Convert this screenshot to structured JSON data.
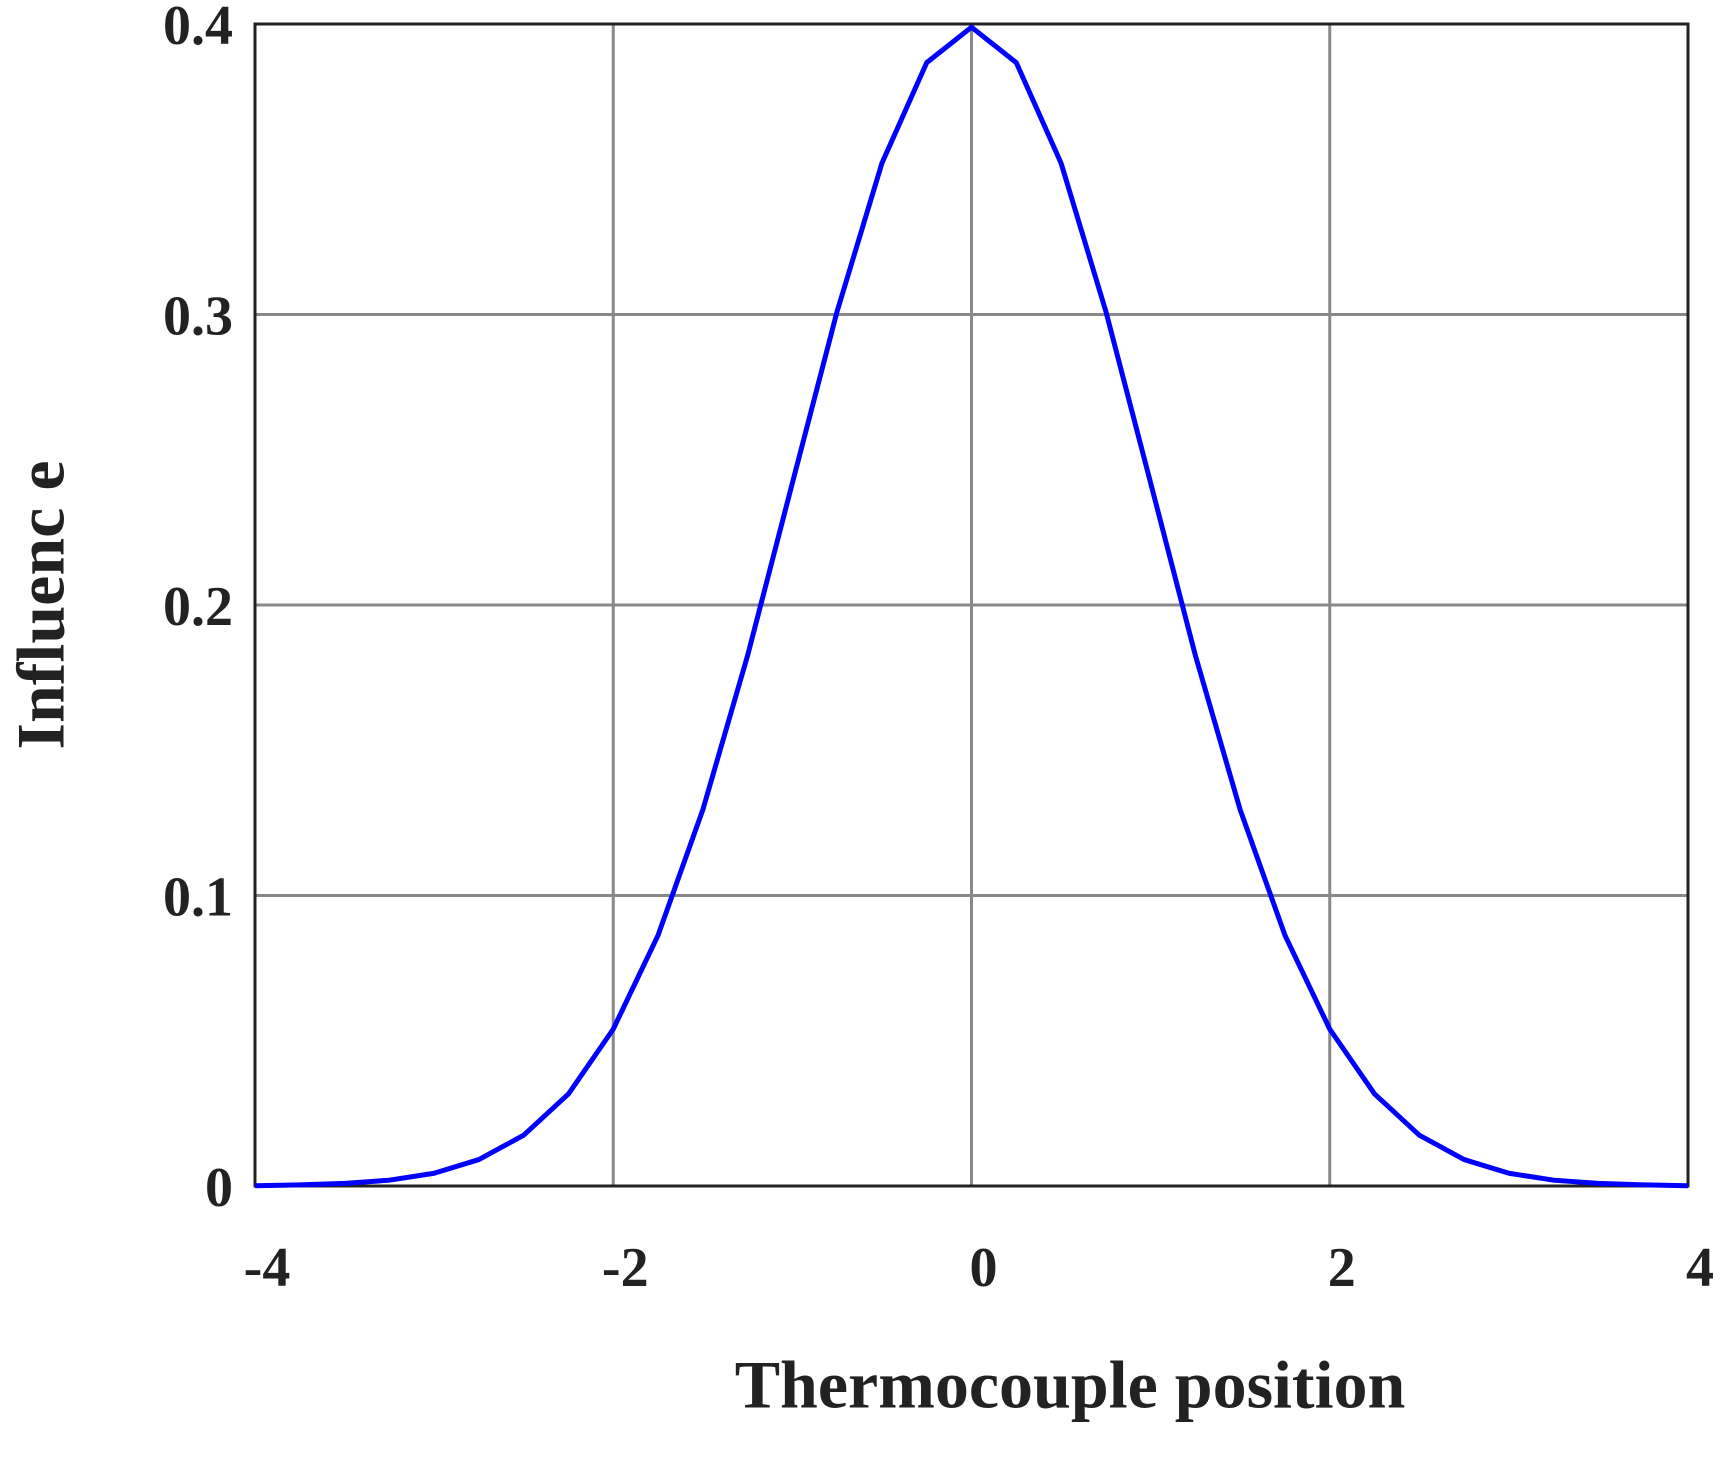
{
  "chart_data": {
    "type": "line",
    "x_label": "Thermocouple position",
    "y_label": "Influenc e",
    "x": [
      -4,
      -3.75,
      -3.5,
      -3.25,
      -3,
      -2.75,
      -2.5,
      -2.25,
      -2,
      -1.75,
      -1.5,
      -1.25,
      -1,
      -0.75,
      -0.5,
      -0.25,
      0,
      0.25,
      0.5,
      0.75,
      1,
      1.25,
      1.5,
      1.75,
      2,
      2.25,
      2.5,
      2.75,
      3,
      3.25,
      3.5,
      3.75,
      4
    ],
    "series": [
      {
        "color": "#0000ff",
        "values": [
          0.0001,
          0.0004,
          0.0009,
          0.002,
          0.0044,
          0.0091,
          0.0175,
          0.0317,
          0.054,
          0.0863,
          0.1295,
          0.1826,
          0.242,
          0.3011,
          0.3521,
          0.3867,
          0.3989,
          0.3867,
          0.3521,
          0.3011,
          0.242,
          0.1826,
          0.1295,
          0.0863,
          0.054,
          0.0317,
          0.0175,
          0.0091,
          0.0044,
          0.002,
          0.0009,
          0.0004,
          0.0001
        ]
      }
    ],
    "xlim": [
      -4,
      4
    ],
    "xticks": [
      -4,
      -2,
      0,
      2,
      4
    ],
    "ylim": [
      0,
      0.4
    ],
    "yticks": [
      0,
      0.1,
      0.2,
      0.3,
      0.4
    ],
    "grid": true
  }
}
